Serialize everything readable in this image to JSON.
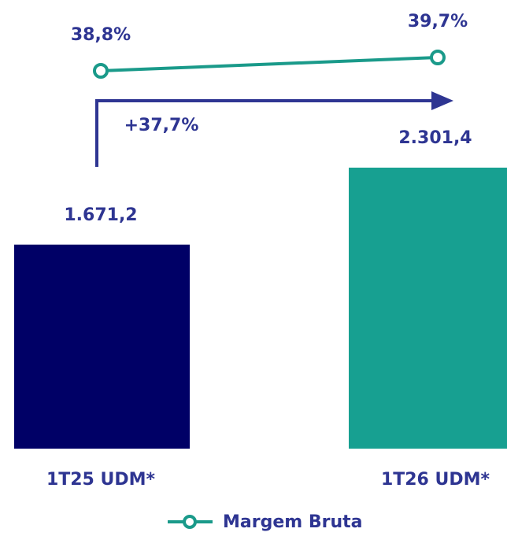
{
  "chart_data": {
    "type": "bar",
    "categories": [
      "1T25 UDM*",
      "1T26 UDM*"
    ],
    "values": [
      1671.2,
      2301.4
    ],
    "value_labels": [
      "1.671,2",
      "2.301,4"
    ],
    "colors": [
      "#000066",
      "#17a091"
    ],
    "line": {
      "type": "line",
      "name": "Margem Bruta",
      "color": "#1a9a8a",
      "values": [
        38.8,
        39.7
      ],
      "value_labels": [
        "38,8%",
        "39,7%"
      ]
    },
    "annotations": [
      "+37,7%"
    ]
  }
}
